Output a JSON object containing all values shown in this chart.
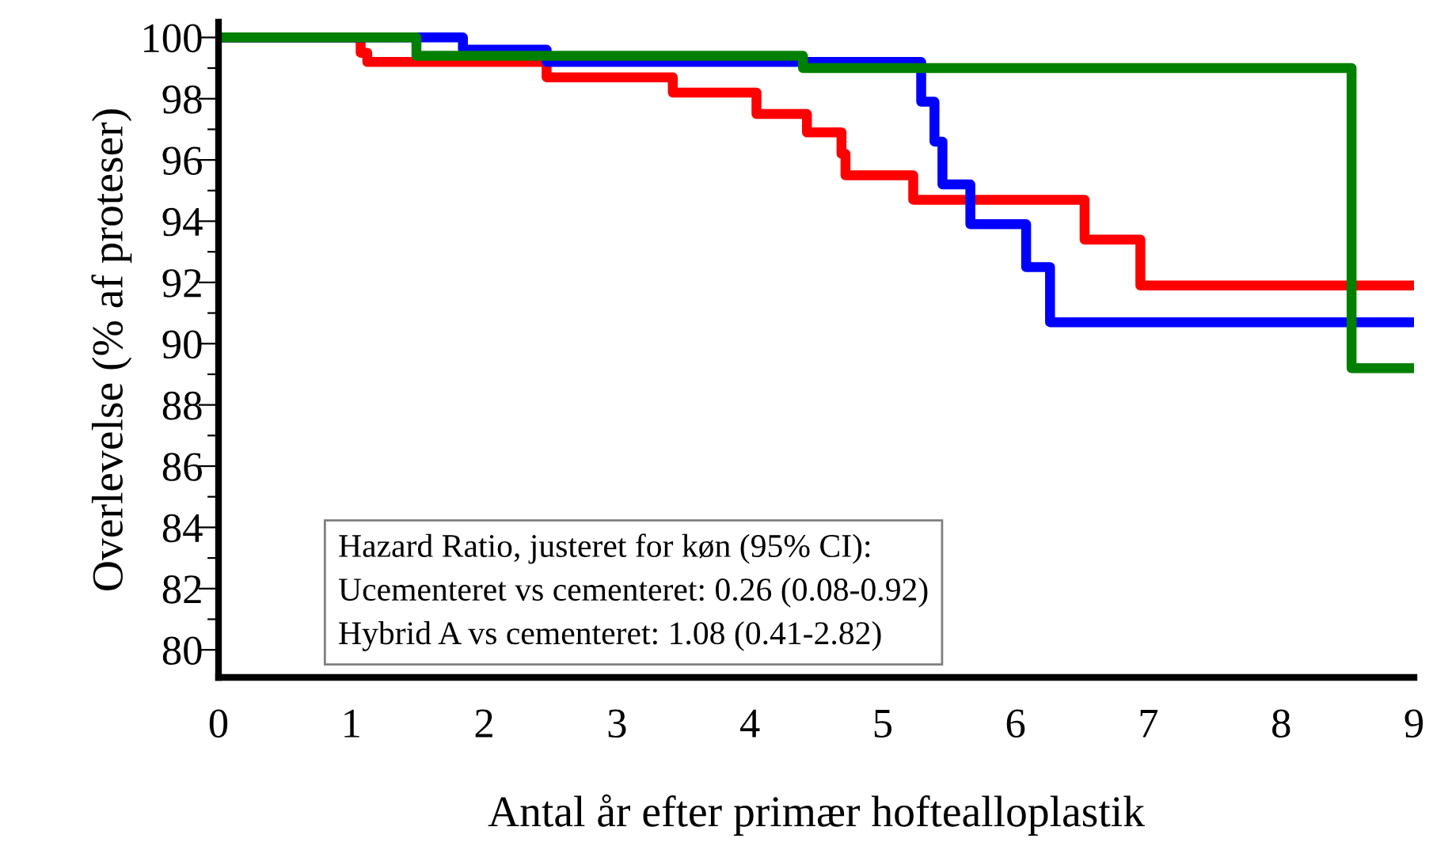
{
  "chart_data": {
    "type": "step",
    "xlabel": "Antal år efter primær hoftealloplastik",
    "ylabel": "Overlevelse (% af proteser)",
    "xlim": [
      0,
      9
    ],
    "ylim": [
      79.1,
      100.5
    ],
    "xticks": [
      0,
      1,
      2,
      3,
      4,
      5,
      6,
      7,
      8,
      9
    ],
    "yticks": [
      80,
      {
        "value": 81,
        "label": null
      },
      82,
      {
        "value": 83,
        "label": null
      },
      84,
      {
        "value": 85,
        "label": null
      },
      86,
      {
        "value": 87,
        "label": null
      },
      88,
      {
        "value": 89,
        "label": null
      },
      90,
      {
        "value": 91,
        "label": null
      },
      92,
      {
        "value": 93,
        "label": null
      },
      94,
      {
        "value": 95,
        "label": null
      },
      96,
      {
        "value": 97,
        "label": null
      },
      98,
      {
        "value": 99,
        "label": null
      },
      100
    ],
    "grid": false,
    "legend": false,
    "line_style": "solid",
    "series": [
      {
        "color": "#ff0000",
        "x": [
          0,
          1.07,
          1.12,
          2.47,
          3.42,
          4.05,
          4.43,
          4.69,
          4.72,
          5.23,
          6.52,
          6.94,
          9
        ],
        "values": [
          100,
          99.5,
          99.2,
          98.7,
          98.2,
          97.5,
          96.9,
          96.2,
          95.5,
          94.7,
          93.4,
          91.9,
          91.9
        ]
      },
      {
        "color": "#0000ff",
        "x": [
          0,
          1.84,
          2.47,
          5.29,
          5.39,
          5.45,
          5.66,
          6.08,
          6.26,
          9
        ],
        "values": [
          100,
          99.6,
          99.2,
          97.9,
          96.6,
          95.2,
          93.9,
          92.5,
          90.7,
          90.7
        ]
      },
      {
        "color": "#008000",
        "x": [
          0,
          1.49,
          4.4,
          8.53,
          9
        ],
        "values": [
          100,
          99.4,
          99.0,
          89.2,
          89.2
        ]
      }
    ],
    "annotations": [
      "Hazard Ratio, justeret for køn (95% CI):",
      "Ucementeret vs cementeret: 0.26 (0.08-0.92)",
      "Hybrid A vs cementeret: 1.08 (0.41-2.82)"
    ]
  }
}
